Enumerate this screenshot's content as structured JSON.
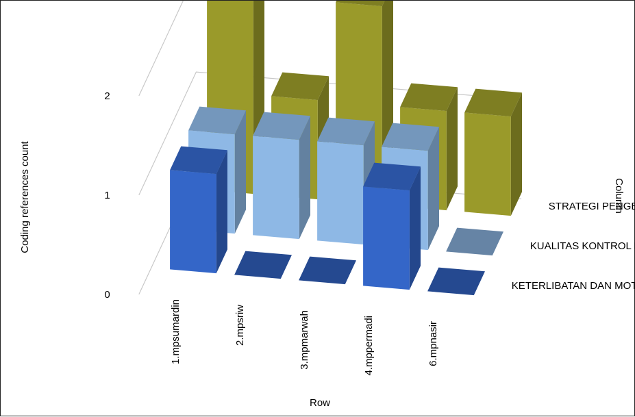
{
  "chart_data": {
    "type": "bar",
    "subtype": "3d-grouped",
    "title": "",
    "ylabel": "Coding references count",
    "xlabel": "Row",
    "legend_title": "Column",
    "ylim": [
      0,
      2
    ],
    "yticks": [
      "0",
      "1",
      "2"
    ],
    "categories": [
      "1.mpsumardin",
      "2.mpsriw",
      "3.mpmarwah",
      "4.mppermadi",
      "6.mpnasir"
    ],
    "series": [
      {
        "name": "STRATEGI PENGEMBANGAN",
        "color": "#9a9a2a",
        "values": [
          2,
          1,
          2,
          1,
          1
        ]
      },
      {
        "name": "KUALITAS KONTROL DAN REV",
        "color": "#8eb8e5",
        "values": [
          1,
          1,
          1,
          1,
          0
        ]
      },
      {
        "name": "KETERLIBATAN DAN MOTIVAS",
        "color": "#3466c8",
        "values": [
          1,
          0,
          0,
          1,
          0
        ]
      }
    ]
  }
}
